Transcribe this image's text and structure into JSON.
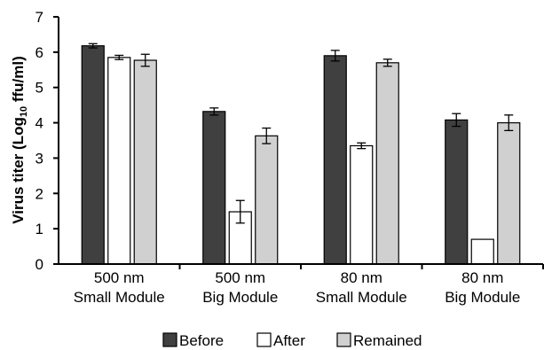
{
  "chart_data": {
    "type": "bar",
    "categories": [
      [
        "500 nm",
        "Small Module"
      ],
      [
        "500 nm",
        "Big Module"
      ],
      [
        "80 nm",
        "Small Module"
      ],
      [
        "80 nm",
        "Big Module"
      ]
    ],
    "series": [
      {
        "name": "Before",
        "color": "#404040",
        "values": [
          6.18,
          4.32,
          5.9,
          4.08
        ],
        "errors": [
          0.06,
          0.1,
          0.15,
          0.18
        ]
      },
      {
        "name": "After",
        "color": "#ffffff",
        "values": [
          5.85,
          1.48,
          3.35,
          0.7
        ],
        "errors": [
          0.06,
          0.32,
          0.08,
          0.0
        ]
      },
      {
        "name": "Remained",
        "color": "#d0d0d0",
        "values": [
          5.77,
          3.63,
          5.7,
          4.0
        ],
        "errors": [
          0.17,
          0.22,
          0.1,
          0.22
        ]
      }
    ],
    "y_ticks": [
      "0",
      "1",
      "2",
      "3",
      "4",
      "5",
      "6",
      "7"
    ],
    "ylim": [
      0,
      7
    ],
    "ylabel": {
      "main": "Virus titer (Log",
      "sub": "10",
      "end": " ffu/ml)"
    },
    "legend_position": "bottom",
    "grid": false
  }
}
